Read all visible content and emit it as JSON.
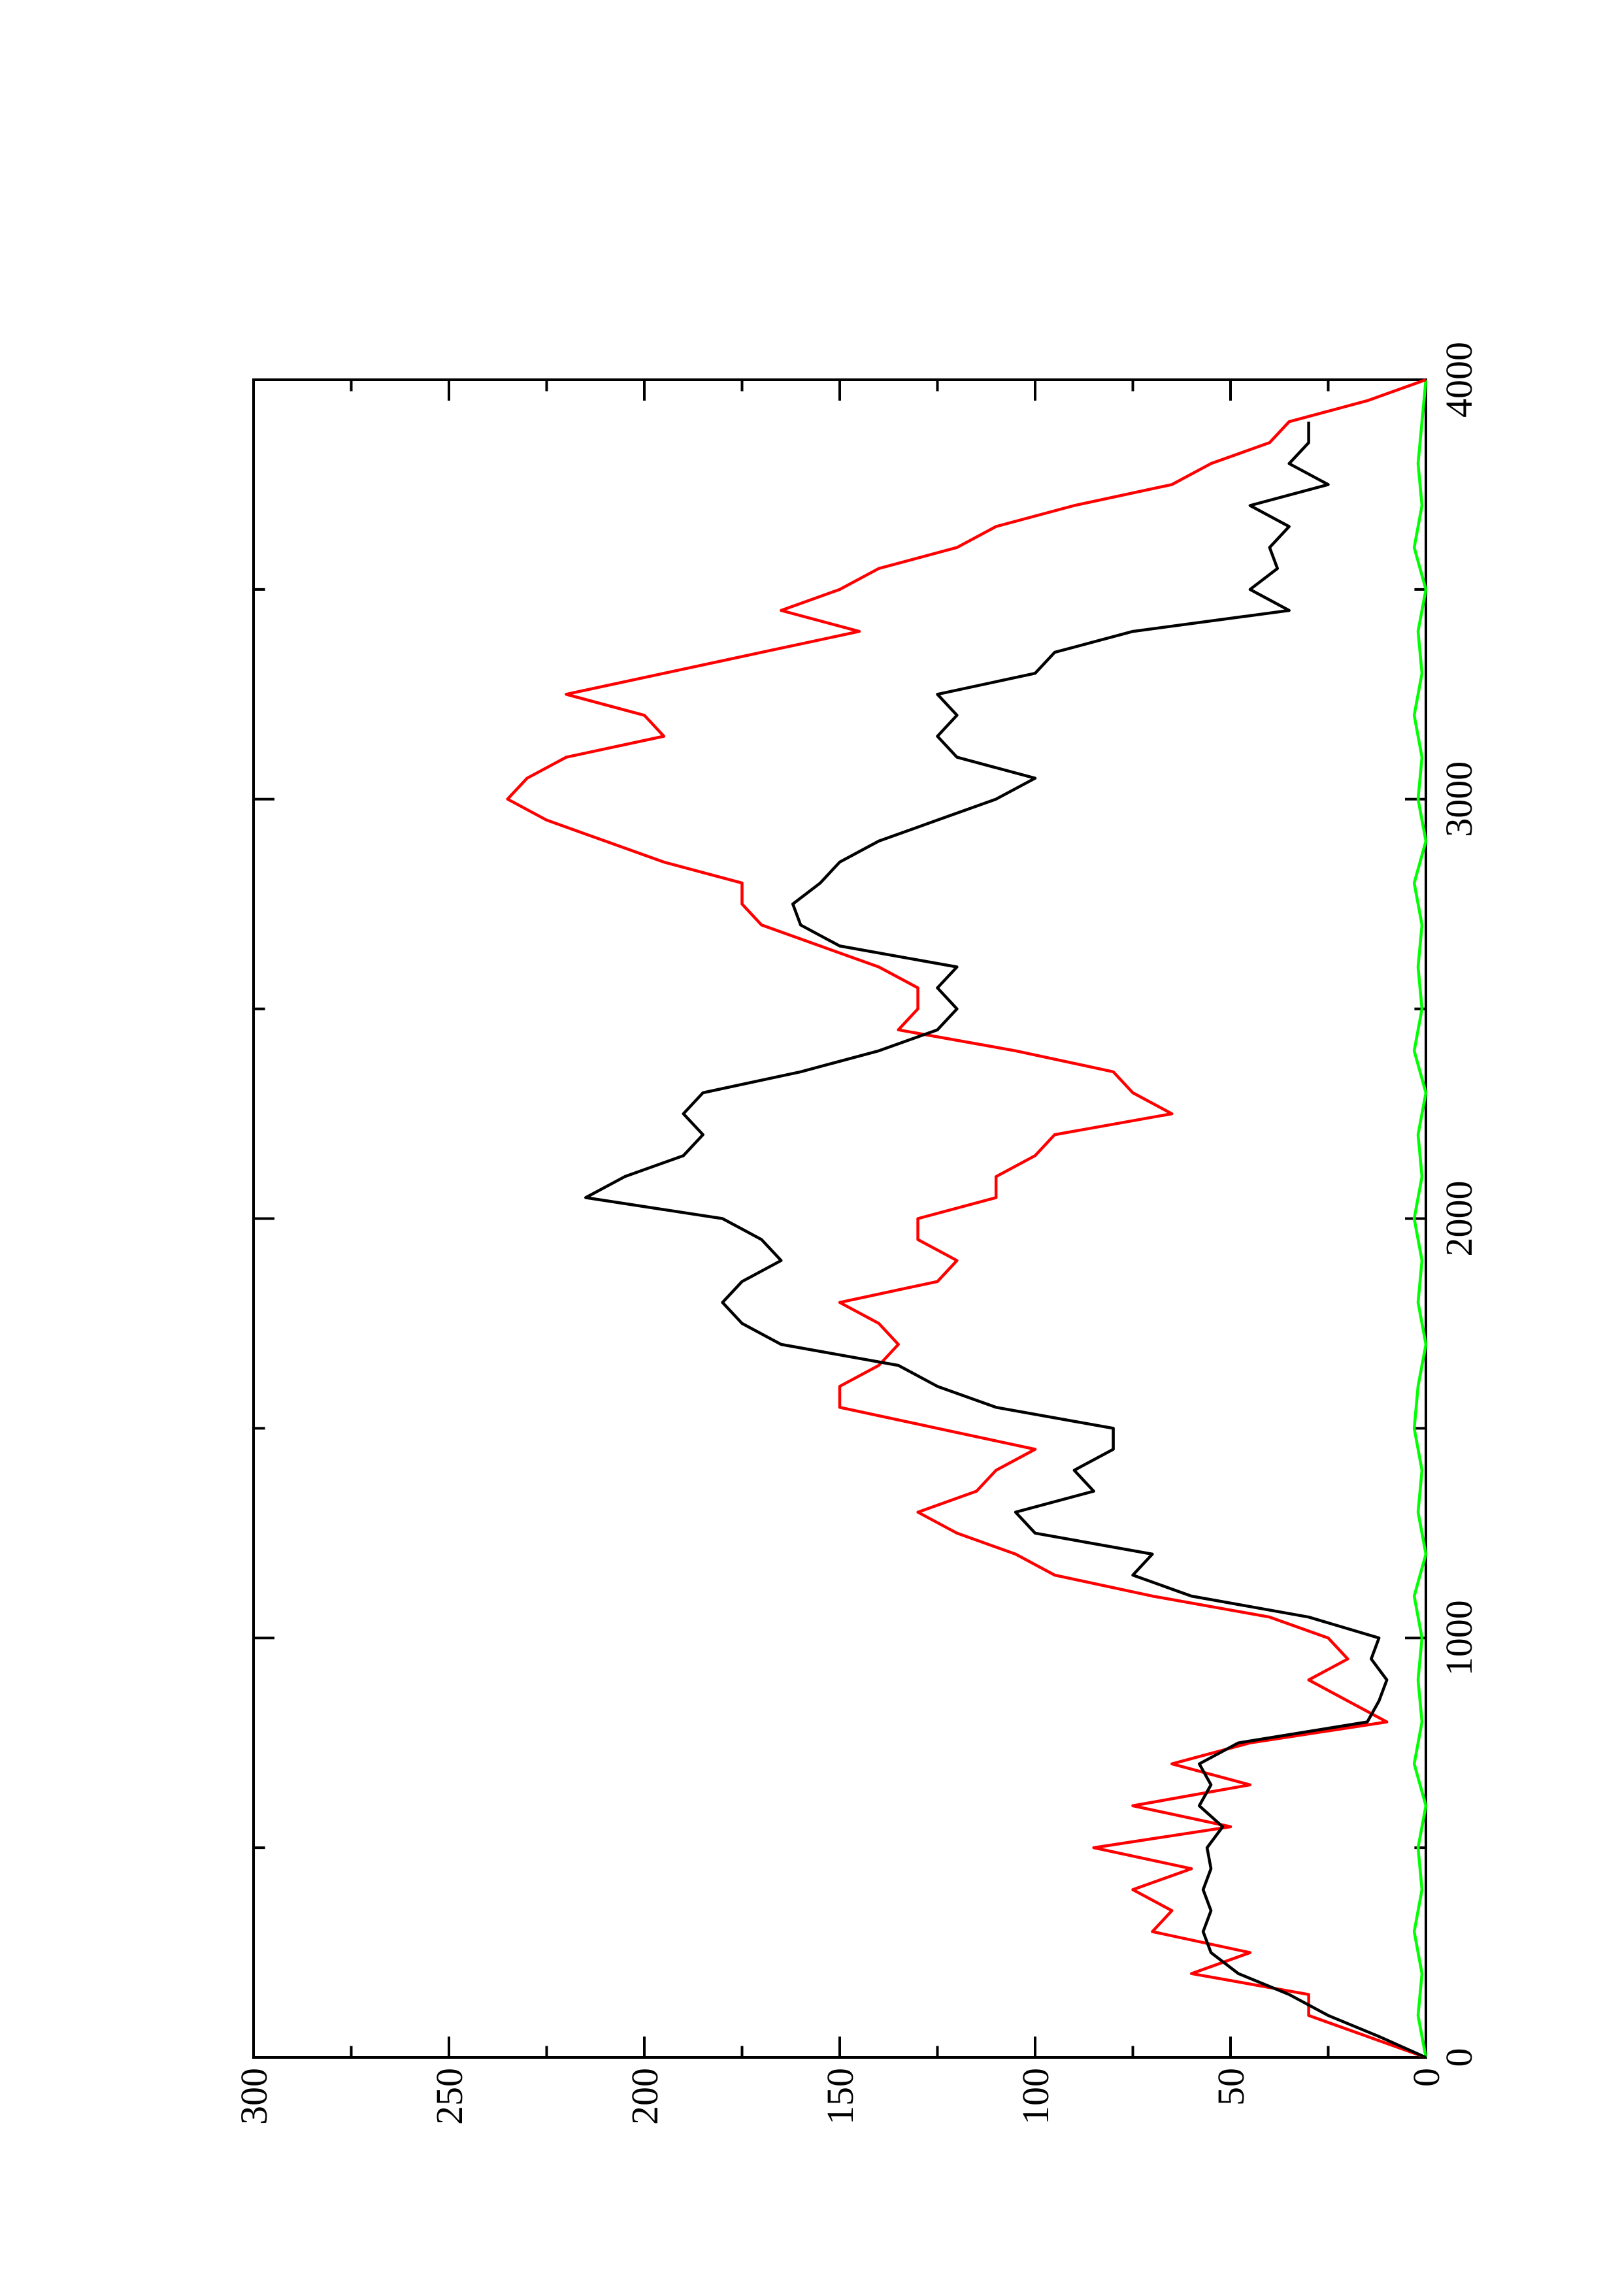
{
  "chart_data": {
    "type": "line",
    "xlim": [
      0,
      4000
    ],
    "xticks": [
      0,
      1000,
      2000,
      3000,
      4000
    ],
    "xminorticks": [
      500,
      1500,
      2500,
      3500
    ],
    "ylim": [
      0,
      300
    ],
    "yticks": [
      0,
      50,
      100,
      150,
      200,
      250,
      300
    ],
    "yminorticks": [
      25,
      75,
      125,
      175,
      225,
      275
    ],
    "series": [
      {
        "color": "#000000",
        "x": [
          0,
          50,
          100,
          150,
          200,
          250,
          300,
          350,
          400,
          450,
          500,
          550,
          600,
          650,
          700,
          750,
          800,
          850,
          900,
          950,
          1000,
          1050,
          1100,
          1150,
          1200,
          1250,
          1300,
          1350,
          1400,
          1450,
          1500,
          1550,
          1600,
          1650,
          1700,
          1750,
          1800,
          1850,
          1900,
          1950,
          2000,
          2050,
          2100,
          2150,
          2200,
          2250,
          2300,
          2350,
          2400,
          2450,
          2500,
          2550,
          2600,
          2650,
          2700,
          2750,
          2800,
          2850,
          2900,
          2950,
          3000,
          3050,
          3100,
          3150,
          3200,
          3250,
          3300,
          3350,
          3400,
          3450,
          3500,
          3550,
          3600,
          3650,
          3700,
          3750,
          3800,
          3850,
          3900
        ],
        "values": [
          0,
          12,
          25,
          35,
          48,
          55,
          57,
          55,
          57,
          55,
          56,
          52,
          58,
          55,
          58,
          48,
          15,
          12,
          10,
          14,
          12,
          30,
          60,
          75,
          70,
          100,
          105,
          85,
          90,
          80,
          80,
          110,
          125,
          135,
          165,
          175,
          180,
          175,
          165,
          170,
          180,
          215,
          205,
          190,
          185,
          190,
          185,
          160,
          140,
          125,
          120,
          125,
          120,
          150,
          160,
          162,
          155,
          150,
          140,
          125,
          110,
          100,
          120,
          125,
          120,
          125,
          100,
          95,
          75,
          35,
          45,
          38,
          40,
          35,
          45,
          25,
          35,
          30,
          30
        ]
      },
      {
        "color": "#ff0000",
        "x": [
          0,
          50,
          100,
          150,
          200,
          250,
          300,
          350,
          400,
          450,
          500,
          550,
          600,
          650,
          700,
          750,
          800,
          850,
          900,
          950,
          1000,
          1050,
          1100,
          1150,
          1200,
          1250,
          1300,
          1350,
          1400,
          1450,
          1500,
          1550,
          1600,
          1650,
          1700,
          1750,
          1800,
          1850,
          1900,
          1950,
          2000,
          2050,
          2100,
          2150,
          2200,
          2250,
          2300,
          2350,
          2400,
          2450,
          2500,
          2550,
          2600,
          2650,
          2700,
          2750,
          2800,
          2850,
          2900,
          2950,
          3000,
          3050,
          3100,
          3150,
          3200,
          3250,
          3300,
          3350,
          3400,
          3450,
          3500,
          3550,
          3600,
          3650,
          3700,
          3750,
          3800,
          3850,
          3900,
          3950,
          4000
        ],
        "values": [
          0,
          15,
          30,
          30,
          60,
          45,
          70,
          65,
          75,
          60,
          85,
          50,
          75,
          45,
          65,
          45,
          10,
          20,
          30,
          20,
          25,
          40,
          70,
          95,
          105,
          120,
          130,
          115,
          110,
          100,
          125,
          150,
          150,
          140,
          135,
          140,
          150,
          125,
          120,
          130,
          130,
          110,
          110,
          100,
          95,
          65,
          75,
          80,
          105,
          135,
          130,
          130,
          140,
          155,
          170,
          175,
          175,
          195,
          210,
          225,
          235,
          230,
          220,
          195,
          200,
          220,
          195,
          170,
          145,
          165,
          150,
          140,
          120,
          110,
          90,
          65,
          55,
          40,
          35,
          15,
          0
        ]
      },
      {
        "color": "#00ff00",
        "x": [
          0,
          100,
          200,
          300,
          400,
          500,
          600,
          700,
          800,
          900,
          1000,
          1100,
          1200,
          1300,
          1400,
          1500,
          1600,
          1700,
          1800,
          1900,
          2000,
          2100,
          2200,
          2300,
          2400,
          2500,
          2600,
          2700,
          2800,
          2900,
          3000,
          3100,
          3200,
          3300,
          3400,
          3500,
          3600,
          3700,
          3800,
          3900,
          4000
        ],
        "values": [
          0,
          2,
          1,
          3,
          1,
          2,
          0,
          3,
          1,
          2,
          1,
          3,
          0,
          2,
          1,
          3,
          2,
          0,
          2,
          1,
          3,
          1,
          2,
          0,
          3,
          1,
          2,
          1,
          3,
          0,
          2,
          1,
          3,
          1,
          2,
          0,
          3,
          1,
          2,
          1,
          0
        ]
      }
    ]
  }
}
